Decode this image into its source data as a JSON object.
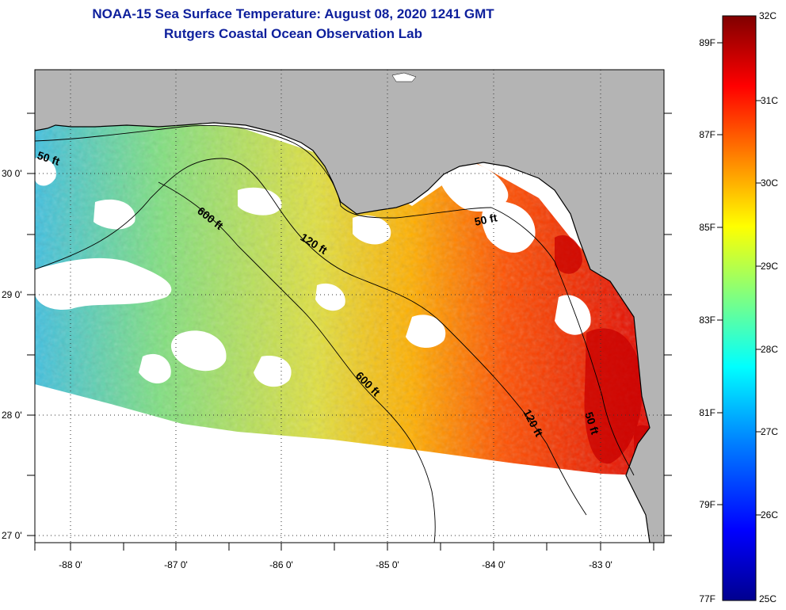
{
  "header": {
    "title": "NOAA-15 Sea Surface Temperature:  August 08, 2020 1241 GMT",
    "subtitle": "Rutgers Coastal Ocean Observation Lab"
  },
  "map": {
    "lon_labels": [
      "-88 0'",
      "-87 0'",
      "-86 0'",
      "-85 0'",
      "-84 0'",
      "-83 0'"
    ],
    "lat_labels": [
      "30 0'",
      "29 0'",
      "28 0'",
      "27 0'"
    ],
    "contours": {
      "c50_west": "50 ft",
      "c600_north": "600 ft",
      "c120_north": "120 ft",
      "c50_east": "50 ft",
      "c600_south": "600 ft",
      "c120_south": "120 ft",
      "c50_south": "50 ft"
    },
    "colors": {
      "land": "#b4b4b4",
      "no_data": "#ffffff",
      "frame": "#000000"
    }
  },
  "colorbar": {
    "celsius": [
      "32C",
      "31C",
      "30C",
      "29C",
      "28C",
      "27C",
      "26C",
      "25C"
    ],
    "fahrenheit": [
      "89F",
      "87F",
      "85F",
      "83F",
      "81F",
      "79F",
      "77F"
    ],
    "colors": [
      "#00008f",
      "#0000ff",
      "#0080ff",
      "#00ffff",
      "#80ff80",
      "#ffff00",
      "#ff8000",
      "#ff0000",
      "#800000"
    ]
  }
}
